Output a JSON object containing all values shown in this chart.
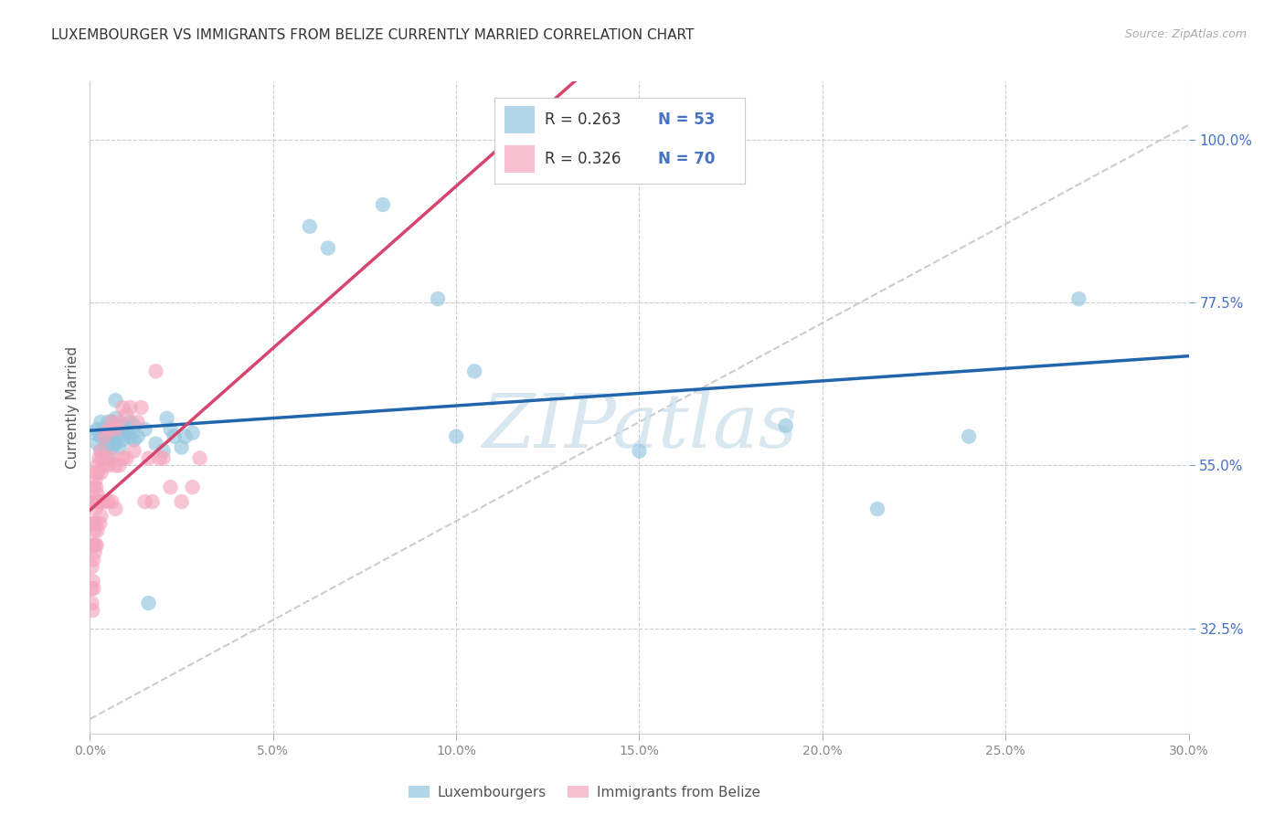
{
  "title": "LUXEMBOURGER VS IMMIGRANTS FROM BELIZE CURRENTLY MARRIED CORRELATION CHART",
  "source_text": "Source: ZipAtlas.com",
  "ylabel": "Currently Married",
  "yticks": [
    0.325,
    0.55,
    0.775,
    1.0
  ],
  "xlim": [
    0.0,
    0.3
  ],
  "ylim": [
    0.18,
    1.08
  ],
  "legend_label_blue": "Luxembourgers",
  "legend_label_pink": "Immigrants from Belize",
  "blue_color": "#92c5de",
  "pink_color": "#f4a6bc",
  "trend_blue_color": "#2166ac",
  "trend_pink_color": "#d6456e",
  "blue_x": [
    0.001,
    0.002,
    0.002,
    0.003,
    0.003,
    0.003,
    0.004,
    0.004,
    0.004,
    0.005,
    0.005,
    0.005,
    0.005,
    0.006,
    0.006,
    0.006,
    0.007,
    0.007,
    0.007,
    0.007,
    0.008,
    0.008,
    0.008,
    0.009,
    0.009,
    0.01,
    0.01,
    0.011,
    0.011,
    0.012,
    0.012,
    0.013,
    0.015,
    0.016,
    0.018,
    0.02,
    0.021,
    0.022,
    0.023,
    0.025,
    0.026,
    0.028,
    0.06,
    0.065,
    0.08,
    0.095,
    0.1,
    0.105,
    0.15,
    0.19,
    0.215,
    0.24,
    0.27
  ],
  "blue_y": [
    0.595,
    0.6,
    0.58,
    0.61,
    0.59,
    0.57,
    0.59,
    0.57,
    0.6,
    0.61,
    0.59,
    0.58,
    0.56,
    0.61,
    0.59,
    0.575,
    0.64,
    0.615,
    0.6,
    0.58,
    0.605,
    0.59,
    0.575,
    0.605,
    0.585,
    0.6,
    0.595,
    0.61,
    0.59,
    0.605,
    0.585,
    0.59,
    0.6,
    0.36,
    0.58,
    0.57,
    0.615,
    0.6,
    0.59,
    0.575,
    0.59,
    0.595,
    0.88,
    0.85,
    0.91,
    0.78,
    0.59,
    0.68,
    0.57,
    0.605,
    0.49,
    0.59,
    0.78
  ],
  "pink_x": [
    0.0003,
    0.0005,
    0.0005,
    0.0007,
    0.0007,
    0.0008,
    0.0008,
    0.0009,
    0.001,
    0.001,
    0.001,
    0.001,
    0.0012,
    0.0012,
    0.0013,
    0.0013,
    0.0015,
    0.0015,
    0.0015,
    0.0016,
    0.0016,
    0.0017,
    0.0018,
    0.0018,
    0.002,
    0.002,
    0.002,
    0.0022,
    0.0022,
    0.0025,
    0.0025,
    0.0027,
    0.003,
    0.003,
    0.003,
    0.0033,
    0.0033,
    0.004,
    0.004,
    0.004,
    0.0045,
    0.005,
    0.005,
    0.005,
    0.006,
    0.006,
    0.006,
    0.007,
    0.007,
    0.007,
    0.008,
    0.008,
    0.009,
    0.009,
    0.01,
    0.01,
    0.011,
    0.012,
    0.013,
    0.014,
    0.015,
    0.016,
    0.017,
    0.018,
    0.019,
    0.02,
    0.022,
    0.025,
    0.028,
    0.03
  ],
  "pink_y": [
    0.38,
    0.41,
    0.36,
    0.44,
    0.35,
    0.47,
    0.39,
    0.42,
    0.5,
    0.47,
    0.44,
    0.38,
    0.52,
    0.46,
    0.5,
    0.43,
    0.53,
    0.49,
    0.44,
    0.54,
    0.47,
    0.52,
    0.5,
    0.44,
    0.55,
    0.51,
    0.46,
    0.54,
    0.5,
    0.56,
    0.5,
    0.47,
    0.57,
    0.54,
    0.48,
    0.56,
    0.5,
    0.59,
    0.55,
    0.5,
    0.56,
    0.6,
    0.55,
    0.5,
    0.61,
    0.56,
    0.5,
    0.6,
    0.55,
    0.49,
    0.61,
    0.55,
    0.63,
    0.56,
    0.62,
    0.56,
    0.63,
    0.57,
    0.61,
    0.63,
    0.5,
    0.56,
    0.5,
    0.68,
    0.56,
    0.56,
    0.52,
    0.5,
    0.52,
    0.56
  ]
}
